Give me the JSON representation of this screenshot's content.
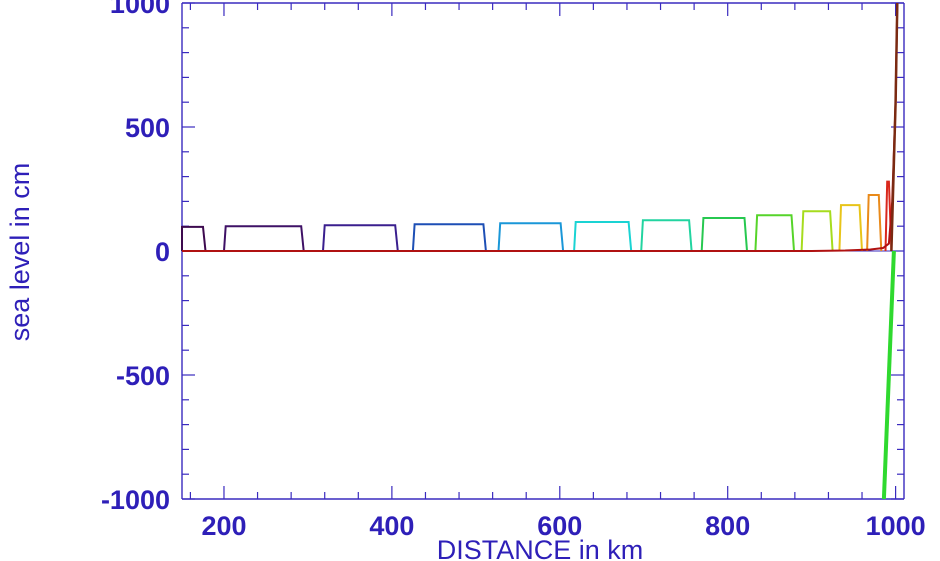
{
  "chart_data": {
    "type": "line",
    "xlabel": "DISTANCE in km",
    "ylabel": "sea level in cm",
    "xlim": [
      150,
      1010
    ],
    "ylim": [
      -1000,
      1000
    ],
    "xticks": [
      200,
      400,
      600,
      800,
      1000
    ],
    "yticks": [
      -1000,
      -500,
      0,
      500,
      1000
    ],
    "axis_color": "#3a2bbf",
    "pulses": [
      {
        "x_start": 150,
        "x_end": 178,
        "height": 97,
        "color": "#3d0a4f"
      },
      {
        "x_start": 200,
        "x_end": 295,
        "height": 100,
        "color": "#3f1166"
      },
      {
        "x_start": 318,
        "x_end": 407,
        "height": 104,
        "color": "#3a1f8e"
      },
      {
        "x_start": 425,
        "x_end": 512,
        "height": 108,
        "color": "#1d4fb5"
      },
      {
        "x_start": 527,
        "x_end": 604,
        "height": 112,
        "color": "#1a97d8"
      },
      {
        "x_start": 617,
        "x_end": 685,
        "height": 117,
        "color": "#1ad3d3"
      },
      {
        "x_start": 697,
        "x_end": 757,
        "height": 124,
        "color": "#22d4a0"
      },
      {
        "x_start": 769,
        "x_end": 823,
        "height": 133,
        "color": "#27c850"
      },
      {
        "x_start": 833,
        "x_end": 879,
        "height": 144,
        "color": "#56d42a"
      },
      {
        "x_start": 888,
        "x_end": 925,
        "height": 160,
        "color": "#a6dc1e"
      },
      {
        "x_start": 933,
        "x_end": 960,
        "height": 185,
        "color": "#e8c419"
      },
      {
        "x_start": 966,
        "x_end": 983,
        "height": 226,
        "color": "#e98a1a"
      },
      {
        "x_start": 988,
        "x_end": 995,
        "height": 280,
        "color": "#d9281c"
      }
    ],
    "final_state": {
      "color": "#b01111",
      "x": [
        150,
        900,
        940,
        970,
        985,
        992,
        996,
        1000,
        1002
      ],
      "y": [
        0,
        0,
        2,
        6,
        12,
        30,
        200,
        600,
        1000
      ]
    },
    "wall_rise": {
      "color": "#7a2a12",
      "x": [
        995,
        1000,
        1002
      ],
      "y": [
        0,
        600,
        1000
      ]
    },
    "trough_line": {
      "color": "#2fd92f",
      "x": [
        986,
        998
      ],
      "y": [
        -1000,
        0
      ]
    }
  }
}
